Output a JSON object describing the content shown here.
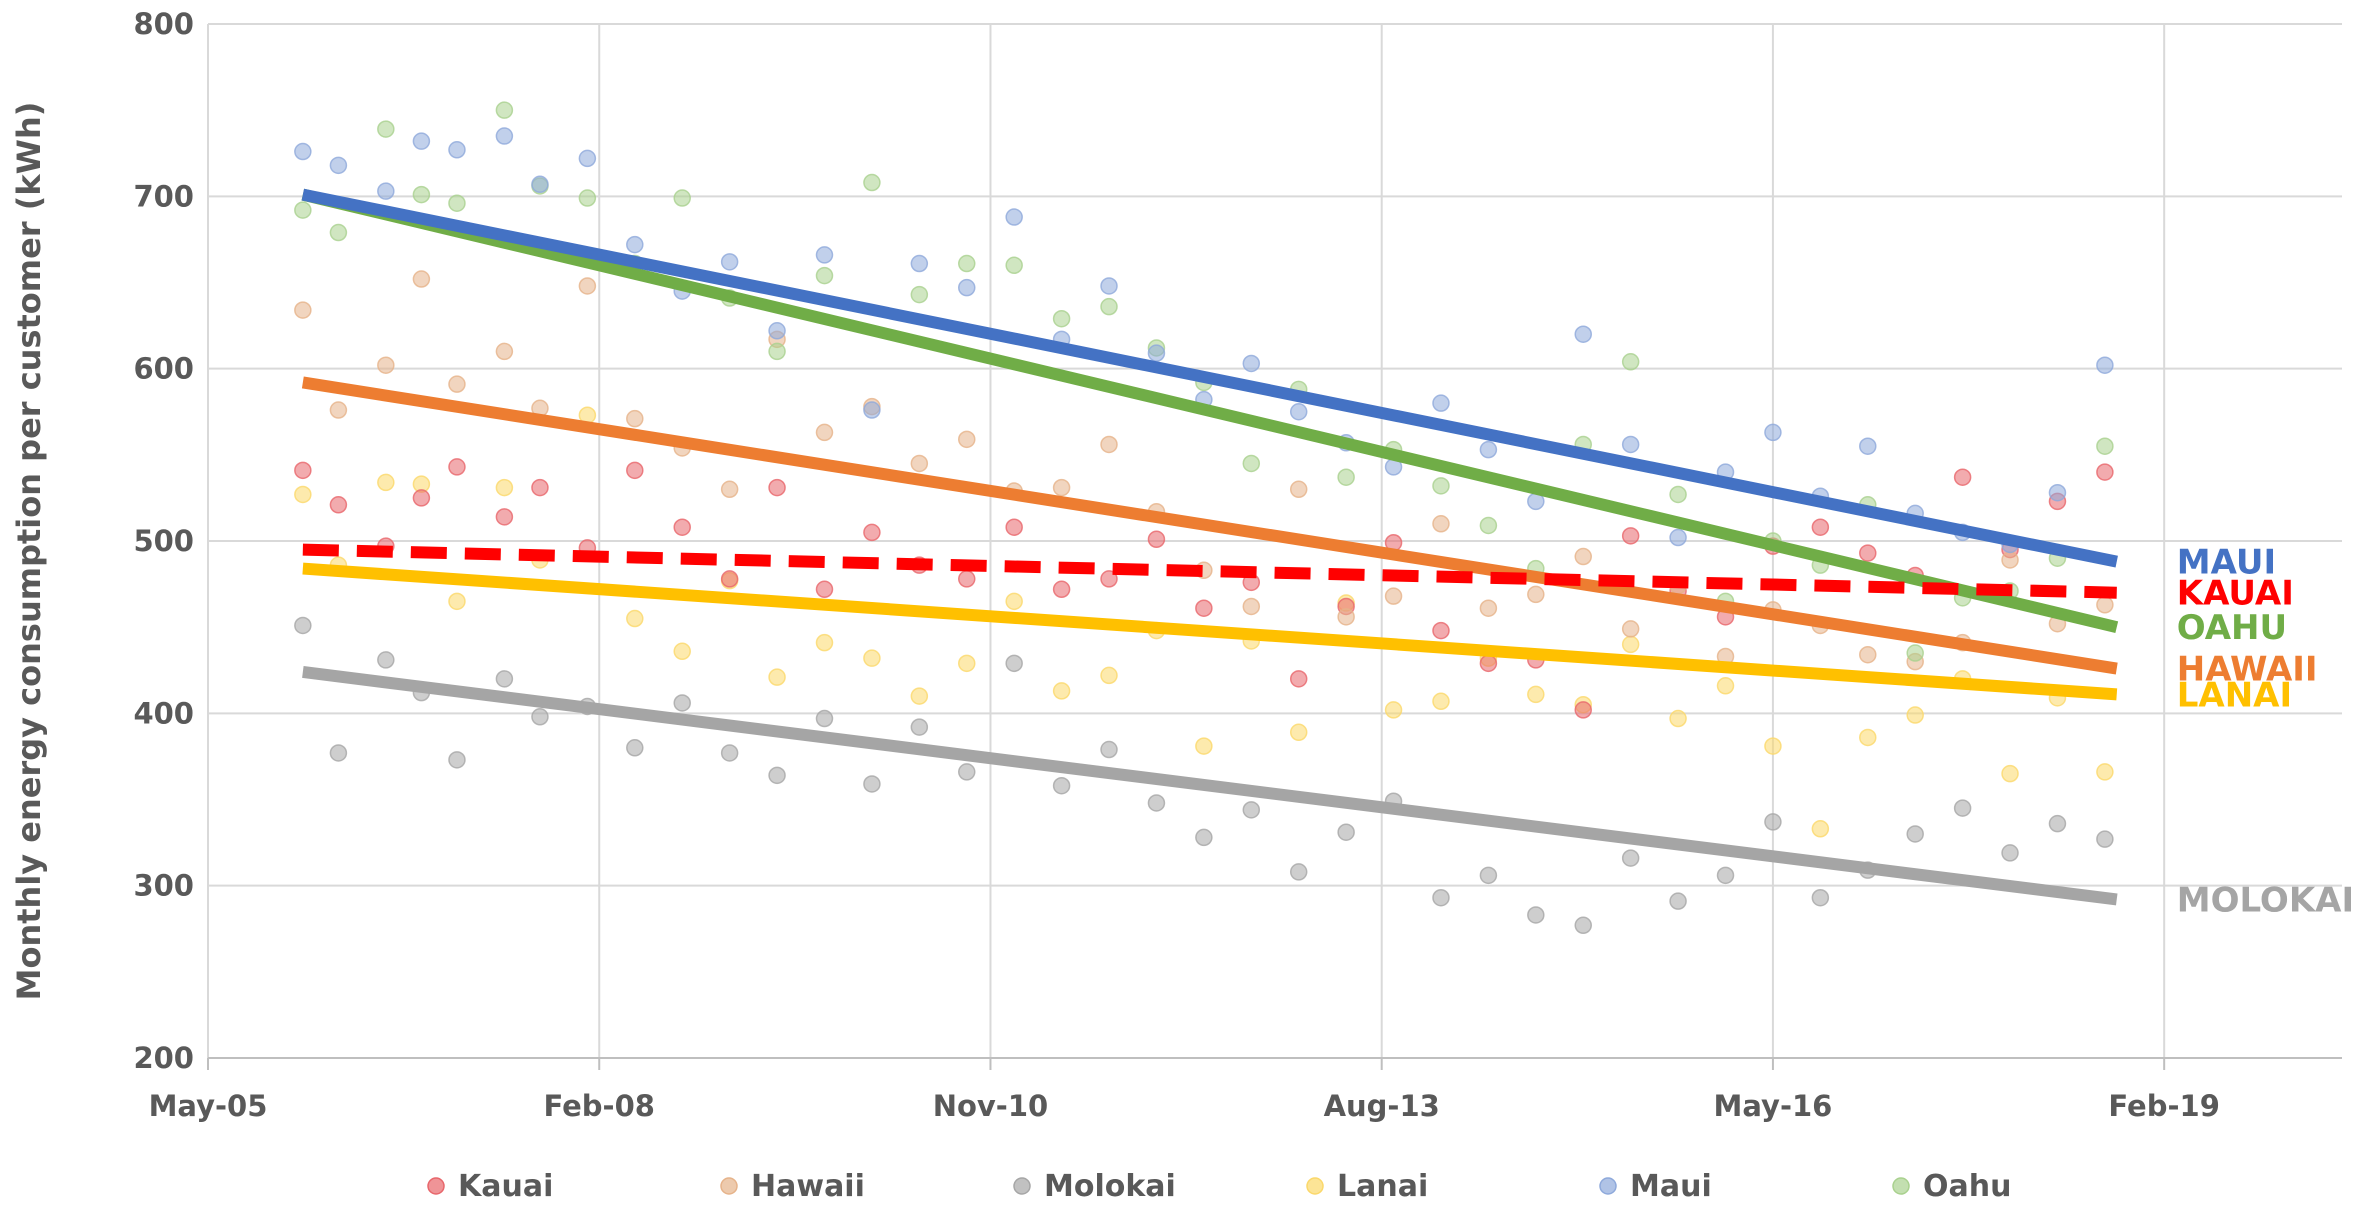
{
  "chart_data": {
    "type": "scatter",
    "title": "",
    "xlabel": "",
    "ylabel": "Monthly energy consumption per customer (kWh)",
    "x_axis": {
      "type": "date",
      "min": "2005-05",
      "max": "2020-05",
      "ticks": [
        "May-05",
        "Feb-08",
        "Nov-10",
        "Aug-13",
        "May-16",
        "Feb-19"
      ]
    },
    "ylim": [
      200,
      800
    ],
    "y_ticks": [
      200,
      300,
      400,
      500,
      600,
      700,
      800
    ],
    "grid": true,
    "legend": "bottom",
    "series": [
      {
        "name": "Kauai",
        "color": "#e8666b",
        "trend": {
          "start": [
            "2006-01",
            495
          ],
          "end": [
            "2018-10",
            470
          ],
          "style": "dashed",
          "color": "#ff0000"
        },
        "label": "KAUAI"
      },
      {
        "name": "Hawaii",
        "color": "#e6b38a",
        "trend": {
          "start": [
            "2006-01",
            592
          ],
          "end": [
            "2018-10",
            426
          ],
          "style": "solid",
          "color": "#ed7d31"
        },
        "label": "HAWAII"
      },
      {
        "name": "Molokai",
        "color": "#a6a6a6",
        "trend": {
          "start": [
            "2006-01",
            424
          ],
          "end": [
            "2018-10",
            292
          ],
          "style": "solid",
          "color": "#a5a5a5"
        },
        "label": "MOLOKAI"
      },
      {
        "name": "Lanai",
        "color": "#fbd86a",
        "trend": {
          "start": [
            "2006-01",
            484
          ],
          "end": [
            "2018-10",
            411
          ],
          "style": "solid",
          "color": "#ffc000"
        },
        "label": "LANAI"
      },
      {
        "name": "Maui",
        "color": "#8ea9db",
        "trend": {
          "start": [
            "2006-01",
            701
          ],
          "end": [
            "2018-10",
            488
          ],
          "style": "solid",
          "color": "#4472c4"
        },
        "label": "MAUI"
      },
      {
        "name": "Oahu",
        "color": "#a9d18e",
        "trend": {
          "start": [
            "2006-01",
            701
          ],
          "end": [
            "2018-10",
            450
          ],
          "style": "solid",
          "color": "#70ad47"
        },
        "label": "OAHU"
      }
    ],
    "scatter_points": {
      "Maui": [
        [
          "2006-01",
          726
        ],
        [
          "2006-04",
          718
        ],
        [
          "2006-08",
          703
        ],
        [
          "2006-11",
          732
        ],
        [
          "2007-02",
          727
        ],
        [
          "2007-06",
          735
        ],
        [
          "2007-09",
          707
        ],
        [
          "2008-01",
          722
        ],
        [
          "2008-05",
          672
        ],
        [
          "2008-09",
          645
        ],
        [
          "2009-01",
          662
        ],
        [
          "2009-05",
          622
        ],
        [
          "2009-09",
          666
        ],
        [
          "2010-01",
          576
        ],
        [
          "2010-05",
          661
        ],
        [
          "2010-09",
          647
        ],
        [
          "2011-01",
          688
        ],
        [
          "2011-05",
          617
        ],
        [
          "2011-09",
          648
        ],
        [
          "2012-01",
          609
        ],
        [
          "2012-05",
          582
        ],
        [
          "2012-09",
          603
        ],
        [
          "2013-01",
          575
        ],
        [
          "2013-05",
          557
        ],
        [
          "2013-09",
          543
        ],
        [
          "2014-01",
          580
        ],
        [
          "2014-05",
          553
        ],
        [
          "2014-09",
          523
        ],
        [
          "2015-01",
          620
        ],
        [
          "2015-05",
          556
        ],
        [
          "2015-09",
          502
        ],
        [
          "2016-01",
          540
        ],
        [
          "2016-05",
          563
        ],
        [
          "2016-09",
          526
        ],
        [
          "2017-01",
          555
        ],
        [
          "2017-05",
          516
        ],
        [
          "2017-09",
          505
        ],
        [
          "2018-01",
          498
        ],
        [
          "2018-05",
          528
        ],
        [
          "2018-09",
          602
        ]
      ],
      "Oahu": [
        [
          "2006-01",
          692
        ],
        [
          "2006-04",
          679
        ],
        [
          "2006-08",
          739
        ],
        [
          "2006-11",
          701
        ],
        [
          "2007-02",
          696
        ],
        [
          "2007-06",
          750
        ],
        [
          "2007-09",
          706
        ],
        [
          "2008-01",
          699
        ],
        [
          "2008-05",
          661
        ],
        [
          "2008-09",
          699
        ],
        [
          "2009-01",
          641
        ],
        [
          "2009-05",
          610
        ],
        [
          "2009-09",
          654
        ],
        [
          "2010-01",
          708
        ],
        [
          "2010-05",
          643
        ],
        [
          "2010-09",
          661
        ],
        [
          "2011-01",
          660
        ],
        [
          "2011-05",
          629
        ],
        [
          "2011-09",
          636
        ],
        [
          "2012-01",
          612
        ],
        [
          "2012-05",
          592
        ],
        [
          "2012-09",
          545
        ],
        [
          "2013-01",
          588
        ],
        [
          "2013-05",
          537
        ],
        [
          "2013-09",
          553
        ],
        [
          "2014-01",
          532
        ],
        [
          "2014-05",
          509
        ],
        [
          "2014-09",
          484
        ],
        [
          "2015-01",
          556
        ],
        [
          "2015-05",
          604
        ],
        [
          "2015-09",
          527
        ],
        [
          "2016-01",
          465
        ],
        [
          "2016-05",
          500
        ],
        [
          "2016-09",
          486
        ],
        [
          "2017-01",
          521
        ],
        [
          "2017-05",
          435
        ],
        [
          "2017-09",
          467
        ],
        [
          "2018-01",
          471
        ],
        [
          "2018-05",
          490
        ],
        [
          "2018-09",
          555
        ]
      ],
      "Hawaii": [
        [
          "2006-01",
          634
        ],
        [
          "2006-04",
          576
        ],
        [
          "2006-08",
          602
        ],
        [
          "2006-11",
          652
        ],
        [
          "2007-02",
          591
        ],
        [
          "2007-06",
          610
        ],
        [
          "2007-09",
          577
        ],
        [
          "2008-01",
          648
        ],
        [
          "2008-05",
          571
        ],
        [
          "2008-09",
          554
        ],
        [
          "2009-01",
          530
        ],
        [
          "2009-05",
          617
        ],
        [
          "2009-09",
          563
        ],
        [
          "2010-01",
          578
        ],
        [
          "2010-05",
          545
        ],
        [
          "2010-09",
          559
        ],
        [
          "2011-01",
          529
        ],
        [
          "2011-05",
          531
        ],
        [
          "2011-09",
          556
        ],
        [
          "2012-01",
          517
        ],
        [
          "2012-05",
          483
        ],
        [
          "2012-09",
          462
        ],
        [
          "2013-01",
          530
        ],
        [
          "2013-05",
          456
        ],
        [
          "2013-09",
          468
        ],
        [
          "2014-01",
          510
        ],
        [
          "2014-05",
          461
        ],
        [
          "2014-09",
          469
        ],
        [
          "2015-01",
          491
        ],
        [
          "2015-05",
          449
        ],
        [
          "2015-09",
          474
        ],
        [
          "2016-01",
          433
        ],
        [
          "2016-05",
          460
        ],
        [
          "2016-09",
          451
        ],
        [
          "2017-01",
          434
        ],
        [
          "2017-05",
          430
        ],
        [
          "2017-09",
          441
        ],
        [
          "2018-01",
          489
        ],
        [
          "2018-05",
          452
        ],
        [
          "2018-09",
          463
        ]
      ],
      "Kauai": [
        [
          "2006-01",
          541
        ],
        [
          "2006-04",
          521
        ],
        [
          "2006-08",
          497
        ],
        [
          "2006-11",
          525
        ],
        [
          "2007-02",
          543
        ],
        [
          "2007-06",
          514
        ],
        [
          "2007-09",
          531
        ],
        [
          "2008-01",
          496
        ],
        [
          "2008-05",
          541
        ],
        [
          "2008-09",
          508
        ],
        [
          "2009-01",
          478
        ],
        [
          "2009-05",
          531
        ],
        [
          "2009-09",
          472
        ],
        [
          "2010-01",
          505
        ],
        [
          "2010-05",
          486
        ],
        [
          "2010-09",
          478
        ],
        [
          "2011-01",
          508
        ],
        [
          "2011-05",
          472
        ],
        [
          "2011-09",
          478
        ],
        [
          "2012-01",
          501
        ],
        [
          "2012-05",
          461
        ],
        [
          "2012-09",
          476
        ],
        [
          "2013-01",
          420
        ],
        [
          "2013-05",
          462
        ],
        [
          "2013-09",
          499
        ],
        [
          "2014-01",
          448
        ],
        [
          "2014-05",
          429
        ],
        [
          "2014-09",
          431
        ],
        [
          "2015-01",
          402
        ],
        [
          "2015-05",
          503
        ],
        [
          "2015-09",
          471
        ],
        [
          "2016-01",
          456
        ],
        [
          "2016-05",
          497
        ],
        [
          "2016-09",
          508
        ],
        [
          "2017-01",
          493
        ],
        [
          "2017-05",
          480
        ],
        [
          "2017-09",
          537
        ],
        [
          "2018-01",
          495
        ],
        [
          "2018-05",
          523
        ],
        [
          "2018-09",
          540
        ]
      ],
      "Lanai": [
        [
          "2006-01",
          527
        ],
        [
          "2006-04",
          486
        ],
        [
          "2006-08",
          534
        ],
        [
          "2006-11",
          533
        ],
        [
          "2007-02",
          465
        ],
        [
          "2007-06",
          531
        ],
        [
          "2007-09",
          489
        ],
        [
          "2008-01",
          573
        ],
        [
          "2008-05",
          455
        ],
        [
          "2008-09",
          436
        ],
        [
          "2009-01",
          477
        ],
        [
          "2009-05",
          421
        ],
        [
          "2009-09",
          441
        ],
        [
          "2010-01",
          432
        ],
        [
          "2010-05",
          410
        ],
        [
          "2010-09",
          429
        ],
        [
          "2011-01",
          465
        ],
        [
          "2011-05",
          413
        ],
        [
          "2011-09",
          422
        ],
        [
          "2012-01",
          448
        ],
        [
          "2012-05",
          381
        ],
        [
          "2012-09",
          442
        ],
        [
          "2013-01",
          389
        ],
        [
          "2013-05",
          464
        ],
        [
          "2013-09",
          402
        ],
        [
          "2014-01",
          407
        ],
        [
          "2014-05",
          432
        ],
        [
          "2014-09",
          411
        ],
        [
          "2015-01",
          405
        ],
        [
          "2015-05",
          440
        ],
        [
          "2015-09",
          397
        ],
        [
          "2016-01",
          416
        ],
        [
          "2016-05",
          381
        ],
        [
          "2016-09",
          333
        ],
        [
          "2017-01",
          386
        ],
        [
          "2017-05",
          399
        ],
        [
          "2017-09",
          420
        ],
        [
          "2018-01",
          365
        ],
        [
          "2018-05",
          409
        ],
        [
          "2018-09",
          366
        ]
      ],
      "Molokai": [
        [
          "2006-01",
          451
        ],
        [
          "2006-04",
          377
        ],
        [
          "2006-08",
          431
        ],
        [
          "2006-11",
          412
        ],
        [
          "2007-02",
          373
        ],
        [
          "2007-06",
          420
        ],
        [
          "2007-09",
          398
        ],
        [
          "2008-01",
          404
        ],
        [
          "2008-05",
          380
        ],
        [
          "2008-09",
          406
        ],
        [
          "2009-01",
          377
        ],
        [
          "2009-05",
          364
        ],
        [
          "2009-09",
          397
        ],
        [
          "2010-01",
          359
        ],
        [
          "2010-05",
          392
        ],
        [
          "2010-09",
          366
        ],
        [
          "2011-01",
          429
        ],
        [
          "2011-05",
          358
        ],
        [
          "2011-09",
          379
        ],
        [
          "2012-01",
          348
        ],
        [
          "2012-05",
          328
        ],
        [
          "2012-09",
          344
        ],
        [
          "2013-01",
          308
        ],
        [
          "2013-05",
          331
        ],
        [
          "2013-09",
          349
        ],
        [
          "2014-01",
          293
        ],
        [
          "2014-05",
          306
        ],
        [
          "2014-09",
          283
        ],
        [
          "2015-01",
          277
        ],
        [
          "2015-05",
          316
        ],
        [
          "2015-09",
          291
        ],
        [
          "2016-01",
          306
        ],
        [
          "2016-05",
          337
        ],
        [
          "2016-09",
          293
        ],
        [
          "2017-01",
          309
        ],
        [
          "2017-05",
          330
        ],
        [
          "2017-09",
          345
        ],
        [
          "2018-01",
          319
        ],
        [
          "2018-05",
          336
        ],
        [
          "2018-09",
          327
        ]
      ]
    }
  }
}
